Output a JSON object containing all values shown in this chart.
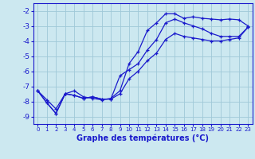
{
  "title": "Graphe des températures (°C)",
  "bg_color": "#cce8f0",
  "line_color": "#1a1acc",
  "grid_color": "#9fc8d8",
  "xlim": [
    -0.5,
    23.5
  ],
  "ylim": [
    -9.5,
    -1.5
  ],
  "yticks": [
    -9,
    -8,
    -7,
    -6,
    -5,
    -4,
    -3,
    -2
  ],
  "xticks": [
    0,
    1,
    2,
    3,
    4,
    5,
    6,
    7,
    8,
    9,
    10,
    11,
    12,
    13,
    14,
    15,
    16,
    17,
    18,
    19,
    20,
    21,
    22,
    23
  ],
  "series": [
    {
      "x": [
        0,
        1,
        2,
        3,
        4,
        5,
        6,
        7,
        8,
        9,
        10,
        11,
        12,
        13,
        14,
        15,
        16,
        17,
        18,
        19,
        20,
        21,
        22,
        23
      ],
      "y": [
        -7.3,
        -8.1,
        -8.8,
        -7.5,
        -7.3,
        -7.7,
        -7.8,
        -7.9,
        -7.8,
        -7.3,
        -5.5,
        -4.7,
        -3.3,
        -2.8,
        -2.2,
        -2.2,
        -2.5,
        -2.4,
        -2.5,
        -2.55,
        -2.6,
        -2.55,
        -2.6,
        -3.0
      ]
    },
    {
      "x": [
        0,
        1,
        2,
        3,
        4,
        5,
        6,
        7,
        8,
        9,
        10,
        11,
        12,
        13,
        14,
        15,
        16,
        17,
        18,
        19,
        20,
        21,
        22,
        23
      ],
      "y": [
        -7.3,
        -8.1,
        -8.8,
        -7.5,
        -7.6,
        -7.8,
        -7.7,
        -7.85,
        -7.85,
        -6.3,
        -5.9,
        -5.5,
        -4.6,
        -3.9,
        -2.8,
        -2.55,
        -2.8,
        -3.0,
        -3.2,
        -3.5,
        -3.7,
        -3.7,
        -3.7,
        -3.1
      ]
    },
    {
      "x": [
        0,
        1,
        2,
        3,
        4,
        5,
        6,
        7,
        8,
        9,
        10,
        11,
        12,
        13,
        14,
        15,
        16,
        17,
        18,
        19,
        20,
        21,
        22,
        23
      ],
      "y": [
        -7.3,
        -7.9,
        -8.5,
        -7.5,
        -7.6,
        -7.8,
        -7.7,
        -7.85,
        -7.85,
        -7.5,
        -6.5,
        -6.0,
        -5.3,
        -4.8,
        -3.9,
        -3.5,
        -3.7,
        -3.8,
        -3.9,
        -4.0,
        -4.0,
        -3.9,
        -3.8,
        -3.1
      ]
    }
  ]
}
